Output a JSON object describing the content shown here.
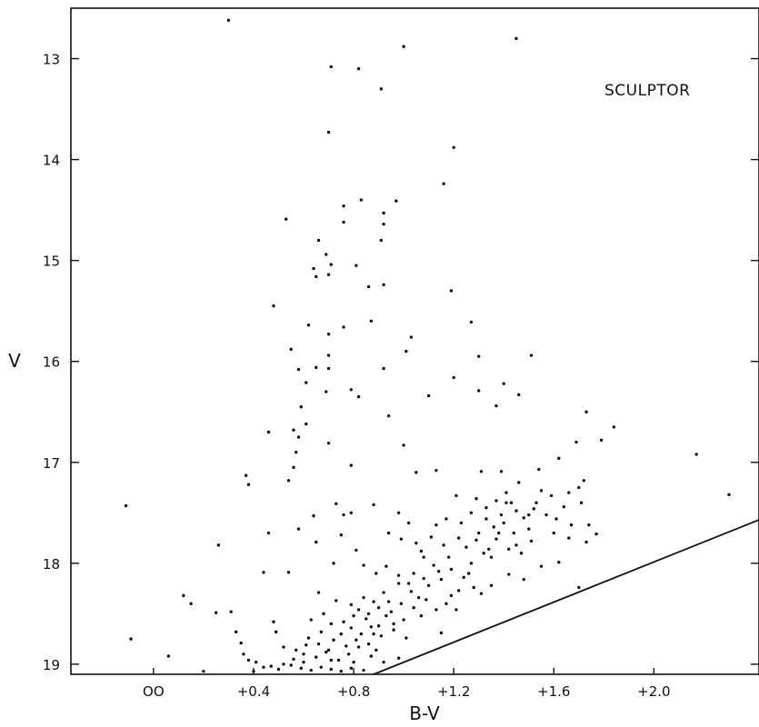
{
  "chart_data": {
    "type": "scatter",
    "title": "",
    "xlabel": "B-V",
    "ylabel": "V",
    "annotation": "SCULPTOR",
    "xlim": [
      -0.33,
      2.42
    ],
    "ylim": [
      19.1,
      12.5
    ],
    "y_inverted": true,
    "grid": false,
    "x_ticks": [
      {
        "value": 0.0,
        "label": "OO"
      },
      {
        "value": 0.4,
        "label": "+0.4"
      },
      {
        "value": 0.8,
        "label": "+0.8"
      },
      {
        "value": 1.2,
        "label": "+1.2"
      },
      {
        "value": 1.6,
        "label": "+1.6"
      },
      {
        "value": 2.0,
        "label": "+2.0"
      }
    ],
    "y_ticks": [
      {
        "value": 13,
        "label": "13"
      },
      {
        "value": 14,
        "label": "14"
      },
      {
        "value": 15,
        "label": "15"
      },
      {
        "value": 16,
        "label": "16"
      },
      {
        "value": 17,
        "label": "17"
      },
      {
        "value": 18,
        "label": "18"
      },
      {
        "value": 19,
        "label": "19"
      }
    ],
    "limit_line": {
      "x": [
        0.88,
        2.42
      ],
      "y": [
        19.1,
        17.57
      ]
    },
    "points": [
      [
        0.3,
        12.62
      ],
      [
        1.0,
        12.88
      ],
      [
        1.45,
        12.8
      ],
      [
        0.71,
        13.08
      ],
      [
        0.82,
        13.1
      ],
      [
        0.91,
        13.3
      ],
      [
        0.7,
        13.73
      ],
      [
        1.2,
        13.88
      ],
      [
        1.16,
        14.24
      ],
      [
        0.97,
        14.41
      ],
      [
        0.83,
        14.4
      ],
      [
        0.76,
        14.46
      ],
      [
        0.92,
        14.53
      ],
      [
        0.53,
        14.59
      ],
      [
        0.76,
        14.62
      ],
      [
        0.92,
        14.64
      ],
      [
        0.66,
        14.8
      ],
      [
        0.69,
        14.94
      ],
      [
        0.91,
        14.8
      ],
      [
        0.64,
        15.08
      ],
      [
        0.71,
        15.04
      ],
      [
        0.7,
        15.14
      ],
      [
        0.81,
        15.05
      ],
      [
        0.65,
        15.16
      ],
      [
        0.86,
        15.26
      ],
      [
        0.92,
        15.24
      ],
      [
        0.48,
        15.45
      ],
      [
        1.19,
        15.3
      ],
      [
        0.62,
        15.64
      ],
      [
        0.76,
        15.66
      ],
      [
        0.7,
        15.73
      ],
      [
        1.03,
        15.76
      ],
      [
        0.87,
        15.6
      ],
      [
        1.27,
        15.61
      ],
      [
        0.55,
        15.88
      ],
      [
        0.7,
        15.94
      ],
      [
        0.58,
        16.08
      ],
      [
        0.65,
        16.06
      ],
      [
        0.7,
        16.07
      ],
      [
        0.92,
        16.07
      ],
      [
        1.2,
        16.16
      ],
      [
        1.01,
        15.9
      ],
      [
        1.3,
        15.95
      ],
      [
        1.51,
        15.94
      ],
      [
        0.61,
        16.21
      ],
      [
        0.79,
        16.28
      ],
      [
        0.82,
        16.35
      ],
      [
        0.59,
        16.45
      ],
      [
        0.69,
        16.3
      ],
      [
        1.1,
        16.34
      ],
      [
        1.3,
        16.29
      ],
      [
        1.4,
        16.22
      ],
      [
        1.46,
        16.33
      ],
      [
        0.94,
        16.54
      ],
      [
        0.56,
        16.68
      ],
      [
        0.61,
        16.62
      ],
      [
        0.46,
        16.7
      ],
      [
        0.58,
        16.75
      ],
      [
        1.37,
        16.44
      ],
      [
        0.57,
        16.9
      ],
      [
        0.7,
        16.81
      ],
      [
        1.0,
        16.83
      ],
      [
        0.56,
        17.05
      ],
      [
        0.79,
        17.03
      ],
      [
        1.13,
        17.08
      ],
      [
        1.05,
        17.1
      ],
      [
        1.31,
        17.09
      ],
      [
        1.39,
        17.09
      ],
      [
        1.54,
        17.07
      ],
      [
        1.62,
        16.96
      ],
      [
        1.69,
        16.8
      ],
      [
        1.73,
        16.5
      ],
      [
        1.79,
        16.78
      ],
      [
        1.84,
        16.65
      ],
      [
        2.17,
        16.92
      ],
      [
        2.3,
        17.32
      ],
      [
        0.37,
        17.13
      ],
      [
        0.38,
        17.22
      ],
      [
        0.54,
        17.18
      ],
      [
        -0.11,
        17.43
      ],
      [
        0.64,
        17.53
      ],
      [
        0.73,
        17.41
      ],
      [
        0.76,
        17.52
      ],
      [
        0.79,
        17.5
      ],
      [
        0.88,
        17.42
      ],
      [
        1.21,
        17.33
      ],
      [
        1.29,
        17.36
      ],
      [
        1.33,
        17.45
      ],
      [
        1.41,
        17.4
      ],
      [
        1.45,
        17.48
      ],
      [
        1.5,
        17.52
      ],
      [
        1.59,
        17.33
      ],
      [
        1.66,
        17.3
      ],
      [
        1.7,
        17.25
      ],
      [
        1.72,
        17.18
      ],
      [
        0.46,
        17.7
      ],
      [
        0.58,
        17.66
      ],
      [
        0.65,
        17.79
      ],
      [
        0.75,
        17.72
      ],
      [
        0.81,
        17.87
      ],
      [
        0.94,
        17.7
      ],
      [
        0.99,
        17.76
      ],
      [
        1.05,
        17.8
      ],
      [
        1.11,
        17.74
      ],
      [
        1.16,
        17.82
      ],
      [
        1.22,
        17.75
      ],
      [
        1.29,
        17.77
      ],
      [
        1.37,
        17.76
      ],
      [
        1.45,
        17.82
      ],
      [
        1.51,
        17.78
      ],
      [
        1.6,
        17.7
      ],
      [
        1.66,
        17.75
      ],
      [
        1.73,
        17.79
      ],
      [
        1.77,
        17.71
      ],
      [
        0.26,
        17.82
      ],
      [
        0.54,
        18.09
      ],
      [
        0.44,
        18.09
      ],
      [
        0.72,
        18.0
      ],
      [
        0.84,
        18.02
      ],
      [
        0.89,
        18.1
      ],
      [
        0.93,
        18.03
      ],
      [
        0.98,
        18.12
      ],
      [
        1.02,
        18.2
      ],
      [
        1.08,
        18.15
      ],
      [
        1.14,
        18.08
      ],
      [
        1.19,
        18.06
      ],
      [
        1.24,
        18.14
      ],
      [
        1.28,
        18.24
      ],
      [
        1.35,
        18.22
      ],
      [
        1.42,
        18.11
      ],
      [
        1.48,
        18.16
      ],
      [
        1.55,
        18.03
      ],
      [
        1.62,
        17.99
      ],
      [
        1.7,
        18.24
      ],
      [
        0.12,
        18.32
      ],
      [
        0.15,
        18.4
      ],
      [
        0.66,
        18.29
      ],
      [
        0.73,
        18.37
      ],
      [
        0.79,
        18.41
      ],
      [
        0.82,
        18.46
      ],
      [
        0.86,
        18.5
      ],
      [
        0.9,
        18.44
      ],
      [
        0.95,
        18.48
      ],
      [
        1.0,
        18.56
      ],
      [
        1.04,
        18.44
      ],
      [
        1.09,
        18.36
      ],
      [
        1.13,
        18.46
      ],
      [
        1.19,
        18.32
      ],
      [
        0.25,
        18.49
      ],
      [
        0.31,
        18.48
      ],
      [
        0.48,
        18.58
      ],
      [
        0.49,
        18.68
      ],
      [
        0.63,
        18.56
      ],
      [
        0.67,
        18.68
      ],
      [
        0.71,
        18.6
      ],
      [
        0.75,
        18.7
      ],
      [
        0.79,
        18.64
      ],
      [
        0.83,
        18.7
      ],
      [
        0.87,
        18.63
      ],
      [
        0.91,
        18.72
      ],
      [
        0.96,
        18.66
      ],
      [
        1.01,
        18.74
      ],
      [
        1.15,
        18.69
      ],
      [
        -0.09,
        18.75
      ],
      [
        0.33,
        18.68
      ],
      [
        0.35,
        18.79
      ],
      [
        0.52,
        18.83
      ],
      [
        0.57,
        18.86
      ],
      [
        0.61,
        18.81
      ],
      [
        0.65,
        18.93
      ],
      [
        0.7,
        18.86
      ],
      [
        0.74,
        18.96
      ],
      [
        0.78,
        18.9
      ],
      [
        0.82,
        18.83
      ],
      [
        0.87,
        18.92
      ],
      [
        0.92,
        18.98
      ],
      [
        0.98,
        18.94
      ],
      [
        0.06,
        18.92
      ],
      [
        0.36,
        18.9
      ],
      [
        0.38,
        18.96
      ],
      [
        0.41,
        18.98
      ],
      [
        0.44,
        19.03
      ],
      [
        0.5,
        19.05
      ],
      [
        0.55,
        19.01
      ],
      [
        0.59,
        19.04
      ],
      [
        0.63,
        19.06
      ],
      [
        0.67,
        19.03
      ],
      [
        0.71,
        19.05
      ],
      [
        0.75,
        19.07
      ],
      [
        0.79,
        19.04
      ],
      [
        0.84,
        19.06
      ],
      [
        0.2,
        19.07
      ],
      [
        0.4,
        19.07
      ],
      [
        0.6,
        18.98
      ],
      [
        0.69,
        18.88
      ],
      [
        0.85,
        18.55
      ],
      [
        0.88,
        18.38
      ],
      [
        0.92,
        18.29
      ],
      [
        0.96,
        18.6
      ],
      [
        1.03,
        18.28
      ],
      [
        1.07,
        18.52
      ],
      [
        1.1,
        18.22
      ],
      [
        1.17,
        18.4
      ],
      [
        1.22,
        18.27
      ],
      [
        1.27,
        18.0
      ],
      [
        1.32,
        17.9
      ],
      [
        1.36,
        17.64
      ],
      [
        1.4,
        17.6
      ],
      [
        1.44,
        17.7
      ],
      [
        1.48,
        17.55
      ],
      [
        1.53,
        17.4
      ],
      [
        1.57,
        17.52
      ],
      [
        0.68,
        18.5
      ],
      [
        0.76,
        18.58
      ],
      [
        0.8,
        18.52
      ],
      [
        0.84,
        18.34
      ],
      [
        0.9,
        18.62
      ],
      [
        0.94,
        18.38
      ],
      [
        0.98,
        18.2
      ],
      [
        1.06,
        18.34
      ],
      [
        1.12,
        18.02
      ],
      [
        1.18,
        17.94
      ],
      [
        1.25,
        17.84
      ],
      [
        1.3,
        17.7
      ],
      [
        1.34,
        17.86
      ],
      [
        1.38,
        17.7
      ],
      [
        1.42,
        17.86
      ],
      [
        1.47,
        17.9
      ],
      [
        0.62,
        18.74
      ],
      [
        0.66,
        18.8
      ],
      [
        0.72,
        18.76
      ],
      [
        0.77,
        18.82
      ],
      [
        0.81,
        18.76
      ],
      [
        0.86,
        18.8
      ],
      [
        0.89,
        18.86
      ],
      [
        0.6,
        18.9
      ],
      [
        0.56,
        18.95
      ],
      [
        0.52,
        19.0
      ],
      [
        0.47,
        19.02
      ],
      [
        0.71,
        18.96
      ],
      [
        0.8,
        18.98
      ],
      [
        0.88,
        18.7
      ],
      [
        0.93,
        18.52
      ],
      [
        0.99,
        18.4
      ],
      [
        1.04,
        18.1
      ],
      [
        1.08,
        17.94
      ],
      [
        1.15,
        18.16
      ],
      [
        1.21,
        18.46
      ],
      [
        1.26,
        18.1
      ],
      [
        1.31,
        18.3
      ],
      [
        1.35,
        17.94
      ],
      [
        1.39,
        17.52
      ],
      [
        1.43,
        17.4
      ],
      [
        1.5,
        17.66
      ],
      [
        1.55,
        17.28
      ],
      [
        1.61,
        17.56
      ],
      [
        1.64,
        17.44
      ],
      [
        1.67,
        17.62
      ],
      [
        1.71,
        17.4
      ],
      [
        1.74,
        17.62
      ],
      [
        0.98,
        17.5
      ],
      [
        1.02,
        17.6
      ],
      [
        1.07,
        17.88
      ],
      [
        1.13,
        17.62
      ],
      [
        1.17,
        17.56
      ],
      [
        1.23,
        17.6
      ],
      [
        1.27,
        17.5
      ],
      [
        1.33,
        17.56
      ],
      [
        1.37,
        17.38
      ],
      [
        1.41,
        17.3
      ],
      [
        1.46,
        17.2
      ],
      [
        1.52,
        17.46
      ]
    ]
  }
}
